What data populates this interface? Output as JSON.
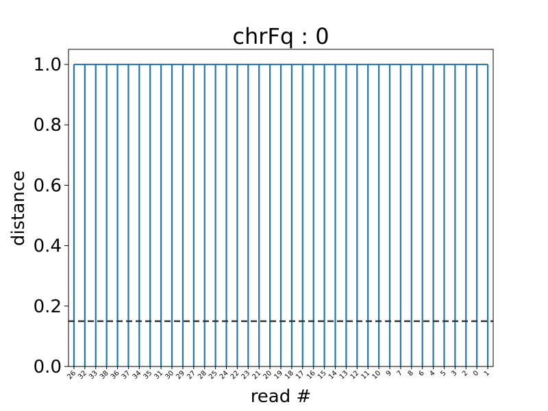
{
  "chart_data": {
    "type": "dendrogram",
    "title": "chrFq : 0",
    "xlabel": "read #",
    "ylabel": "distance",
    "ylim": [
      0,
      1.05
    ],
    "yticks": [
      "0.0",
      "0.2",
      "0.4",
      "0.6",
      "0.8",
      "1.0"
    ],
    "ytick_values": [
      0,
      0.2,
      0.4,
      0.6,
      0.8,
      1.0
    ],
    "leaves": [
      "26",
      "32",
      "33",
      "38",
      "36",
      "37",
      "34",
      "35",
      "31",
      "30",
      "29",
      "27",
      "28",
      "25",
      "24",
      "22",
      "23",
      "21",
      "20",
      "19",
      "18",
      "17",
      "16",
      "15",
      "14",
      "13",
      "12",
      "11",
      "10",
      "9",
      "7",
      "8",
      "6",
      "4",
      "5",
      "3",
      "2",
      "0",
      "1"
    ],
    "merge_height": 1.0,
    "threshold": 0.15,
    "link_color": "#1f77b4",
    "threshold_color": "#333333"
  }
}
